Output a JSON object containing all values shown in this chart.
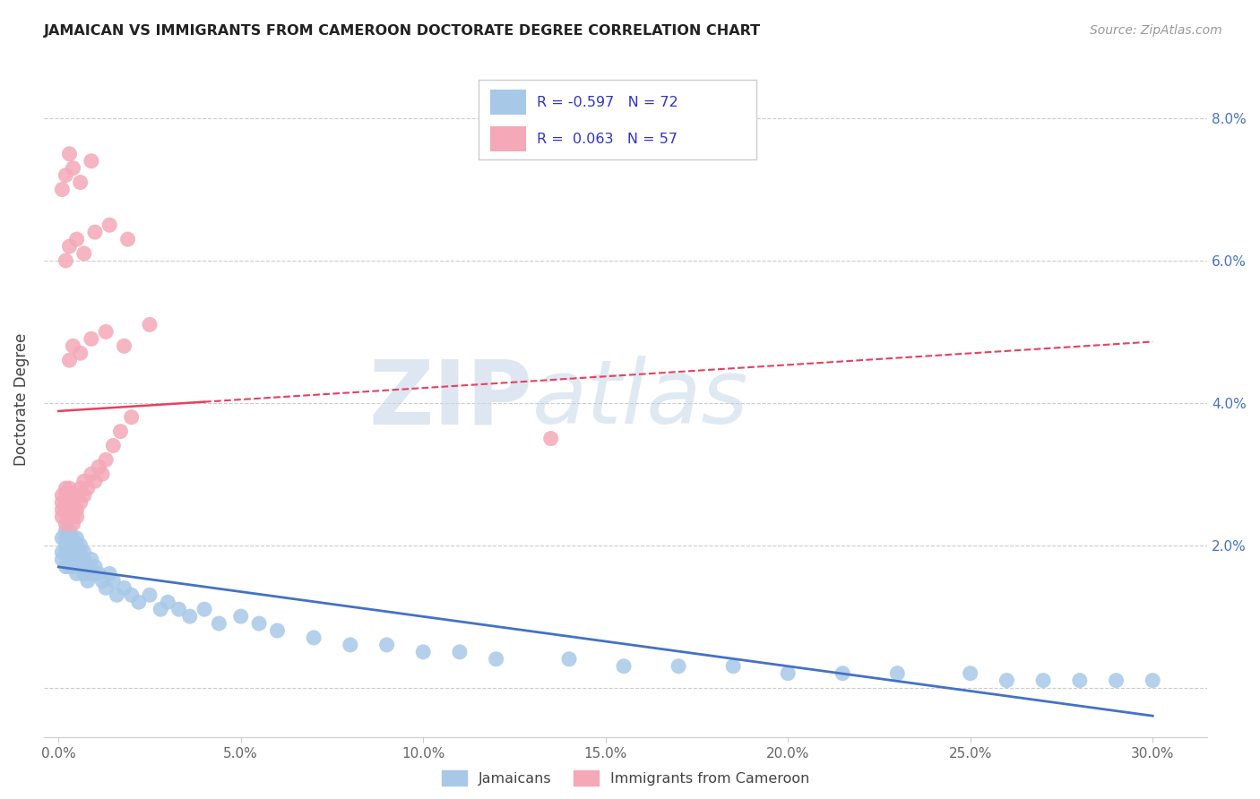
{
  "title": "JAMAICAN VS IMMIGRANTS FROM CAMEROON DOCTORATE DEGREE CORRELATION CHART",
  "source": "Source: ZipAtlas.com",
  "ylabel": "Doctorate Degree",
  "x_ticks": [
    0.0,
    0.05,
    0.1,
    0.15,
    0.2,
    0.25,
    0.3
  ],
  "x_tick_labels": [
    "0.0%",
    "5.0%",
    "10.0%",
    "15.0%",
    "20.0%",
    "25.0%",
    "30.0%"
  ],
  "y_ticks": [
    0.0,
    0.02,
    0.04,
    0.06,
    0.08
  ],
  "y_tick_labels_right": [
    "",
    "2.0%",
    "4.0%",
    "6.0%",
    "8.0%"
  ],
  "xlim": [
    -0.004,
    0.315
  ],
  "ylim": [
    -0.007,
    0.088
  ],
  "blue_R": -0.597,
  "blue_N": 72,
  "pink_R": 0.063,
  "pink_N": 57,
  "blue_color": "#a8c8e8",
  "pink_color": "#f4a8b8",
  "blue_line_color": "#4472c4",
  "pink_line_color": "#e84060",
  "legend_label_blue": "Jamaicans",
  "legend_label_pink": "Immigrants from Cameroon",
  "blue_x": [
    0.001,
    0.001,
    0.001,
    0.002,
    0.002,
    0.002,
    0.002,
    0.002,
    0.003,
    0.003,
    0.003,
    0.003,
    0.003,
    0.003,
    0.004,
    0.004,
    0.004,
    0.004,
    0.004,
    0.005,
    0.005,
    0.005,
    0.005,
    0.006,
    0.006,
    0.006,
    0.007,
    0.007,
    0.007,
    0.008,
    0.008,
    0.009,
    0.009,
    0.01,
    0.011,
    0.012,
    0.013,
    0.014,
    0.015,
    0.016,
    0.018,
    0.02,
    0.022,
    0.025,
    0.028,
    0.03,
    0.033,
    0.036,
    0.04,
    0.044,
    0.05,
    0.055,
    0.06,
    0.07,
    0.08,
    0.09,
    0.1,
    0.11,
    0.12,
    0.14,
    0.155,
    0.17,
    0.185,
    0.2,
    0.215,
    0.23,
    0.25,
    0.26,
    0.27,
    0.28,
    0.29,
    0.3
  ],
  "blue_y": [
    0.019,
    0.021,
    0.018,
    0.02,
    0.022,
    0.019,
    0.017,
    0.021,
    0.02,
    0.018,
    0.022,
    0.019,
    0.021,
    0.017,
    0.02,
    0.018,
    0.021,
    0.019,
    0.017,
    0.02,
    0.018,
    0.021,
    0.016,
    0.019,
    0.017,
    0.02,
    0.018,
    0.016,
    0.019,
    0.017,
    0.015,
    0.018,
    0.016,
    0.017,
    0.016,
    0.015,
    0.014,
    0.016,
    0.015,
    0.013,
    0.014,
    0.013,
    0.012,
    0.013,
    0.011,
    0.012,
    0.011,
    0.01,
    0.011,
    0.009,
    0.01,
    0.009,
    0.008,
    0.007,
    0.006,
    0.006,
    0.005,
    0.005,
    0.004,
    0.004,
    0.003,
    0.003,
    0.003,
    0.002,
    0.002,
    0.002,
    0.002,
    0.001,
    0.001,
    0.001,
    0.001,
    0.001
  ],
  "pink_x": [
    0.001,
    0.001,
    0.001,
    0.001,
    0.002,
    0.002,
    0.002,
    0.002,
    0.002,
    0.003,
    0.003,
    0.003,
    0.003,
    0.003,
    0.003,
    0.004,
    0.004,
    0.004,
    0.004,
    0.004,
    0.005,
    0.005,
    0.005,
    0.006,
    0.006,
    0.007,
    0.007,
    0.008,
    0.009,
    0.01,
    0.011,
    0.012,
    0.013,
    0.015,
    0.017,
    0.02,
    0.002,
    0.003,
    0.005,
    0.007,
    0.01,
    0.014,
    0.019,
    0.003,
    0.004,
    0.006,
    0.009,
    0.013,
    0.018,
    0.025,
    0.001,
    0.002,
    0.003,
    0.004,
    0.006,
    0.009,
    0.135
  ],
  "pink_y": [
    0.025,
    0.027,
    0.024,
    0.026,
    0.025,
    0.027,
    0.023,
    0.026,
    0.028,
    0.024,
    0.026,
    0.025,
    0.028,
    0.024,
    0.027,
    0.025,
    0.027,
    0.024,
    0.026,
    0.023,
    0.025,
    0.027,
    0.024,
    0.026,
    0.028,
    0.027,
    0.029,
    0.028,
    0.03,
    0.029,
    0.031,
    0.03,
    0.032,
    0.034,
    0.036,
    0.038,
    0.06,
    0.062,
    0.063,
    0.061,
    0.064,
    0.065,
    0.063,
    0.046,
    0.048,
    0.047,
    0.049,
    0.05,
    0.048,
    0.051,
    0.07,
    0.072,
    0.075,
    0.073,
    0.071,
    0.074,
    0.035
  ]
}
